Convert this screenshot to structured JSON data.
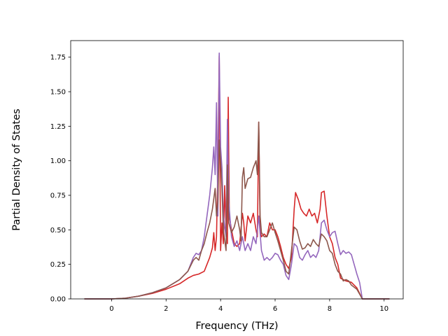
{
  "chart_data": {
    "type": "line",
    "title": "",
    "xlabel": "Frequency (THz)",
    "ylabel": "Partial Density of States",
    "xlim": [
      -1.5,
      10.7
    ],
    "ylim": [
      0,
      1.87
    ],
    "xticks": [
      0,
      2,
      4,
      6,
      8,
      10
    ],
    "xtick_labels": [
      "0",
      "2",
      "4",
      "6",
      "8",
      "10"
    ],
    "yticks": [
      0,
      0.25,
      0.5,
      0.75,
      1.0,
      1.25,
      1.5,
      1.75
    ],
    "ytick_labels": [
      "0.00",
      "0.25",
      "0.50",
      "0.75",
      "1.00",
      "1.25",
      "1.50",
      "1.75"
    ],
    "grid": false,
    "legend": "none",
    "series": [
      {
        "color": "#d62728",
        "points": [
          [
            -1.0,
            0
          ],
          [
            0,
            0
          ],
          [
            0.5,
            0.005
          ],
          [
            1.0,
            0.02
          ],
          [
            1.5,
            0.04
          ],
          [
            2.0,
            0.07
          ],
          [
            2.5,
            0.11
          ],
          [
            2.8,
            0.15
          ],
          [
            3.0,
            0.17
          ],
          [
            3.2,
            0.18
          ],
          [
            3.4,
            0.2
          ],
          [
            3.5,
            0.25
          ],
          [
            3.6,
            0.3
          ],
          [
            3.7,
            0.37
          ],
          [
            3.75,
            0.48
          ],
          [
            3.8,
            0.35
          ],
          [
            3.85,
            0.45
          ],
          [
            3.9,
            0.95
          ],
          [
            3.95,
            1.76
          ],
          [
            4.0,
            0.35
          ],
          [
            4.05,
            0.55
          ],
          [
            4.1,
            0.4
          ],
          [
            4.15,
            0.82
          ],
          [
            4.2,
            0.5
          ],
          [
            4.25,
            0.4
          ],
          [
            4.28,
            1.46
          ],
          [
            4.32,
            0.6
          ],
          [
            4.4,
            0.5
          ],
          [
            4.5,
            0.4
          ],
          [
            4.6,
            0.38
          ],
          [
            4.7,
            0.4
          ],
          [
            4.8,
            0.62
          ],
          [
            4.85,
            0.55
          ],
          [
            4.9,
            0.42
          ],
          [
            5.0,
            0.6
          ],
          [
            5.1,
            0.55
          ],
          [
            5.2,
            0.62
          ],
          [
            5.3,
            0.5
          ],
          [
            5.35,
            0.45
          ],
          [
            5.4,
            1.28
          ],
          [
            5.45,
            0.5
          ],
          [
            5.5,
            0.45
          ],
          [
            5.6,
            0.47
          ],
          [
            5.7,
            0.45
          ],
          [
            5.8,
            0.55
          ],
          [
            5.9,
            0.5
          ],
          [
            6.0,
            0.5
          ],
          [
            6.1,
            0.45
          ],
          [
            6.2,
            0.38
          ],
          [
            6.3,
            0.3
          ],
          [
            6.4,
            0.25
          ],
          [
            6.5,
            0.22
          ],
          [
            6.6,
            0.3
          ],
          [
            6.7,
            0.65
          ],
          [
            6.75,
            0.77
          ],
          [
            6.85,
            0.72
          ],
          [
            6.95,
            0.65
          ],
          [
            7.05,
            0.62
          ],
          [
            7.15,
            0.6
          ],
          [
            7.25,
            0.65
          ],
          [
            7.35,
            0.6
          ],
          [
            7.45,
            0.62
          ],
          [
            7.55,
            0.55
          ],
          [
            7.65,
            0.65
          ],
          [
            7.7,
            0.77
          ],
          [
            7.8,
            0.78
          ],
          [
            7.9,
            0.6
          ],
          [
            8.0,
            0.45
          ],
          [
            8.1,
            0.4
          ],
          [
            8.2,
            0.3
          ],
          [
            8.3,
            0.25
          ],
          [
            8.4,
            0.15
          ],
          [
            8.6,
            0.13
          ],
          [
            8.8,
            0.12
          ],
          [
            9.0,
            0.08
          ],
          [
            9.2,
            0
          ],
          [
            10.2,
            0
          ]
        ]
      },
      {
        "color": "#9467bd",
        "points": [
          [
            -1.0,
            0
          ],
          [
            0,
            0
          ],
          [
            0.5,
            0.005
          ],
          [
            1.0,
            0.02
          ],
          [
            1.5,
            0.045
          ],
          [
            2.0,
            0.08
          ],
          [
            2.5,
            0.14
          ],
          [
            2.8,
            0.2
          ],
          [
            3.0,
            0.3
          ],
          [
            3.1,
            0.33
          ],
          [
            3.2,
            0.32
          ],
          [
            3.3,
            0.35
          ],
          [
            3.4,
            0.45
          ],
          [
            3.5,
            0.6
          ],
          [
            3.6,
            0.75
          ],
          [
            3.7,
            0.95
          ],
          [
            3.75,
            1.1
          ],
          [
            3.8,
            0.9
          ],
          [
            3.85,
            1.42
          ],
          [
            3.9,
            0.6
          ],
          [
            3.95,
            1.78
          ],
          [
            4.0,
            1.1
          ],
          [
            4.05,
            0.95
          ],
          [
            4.1,
            0.6
          ],
          [
            4.2,
            0.45
          ],
          [
            4.25,
            1.3
          ],
          [
            4.3,
            0.7
          ],
          [
            4.4,
            0.45
          ],
          [
            4.5,
            0.38
          ],
          [
            4.6,
            0.42
          ],
          [
            4.7,
            0.35
          ],
          [
            4.8,
            0.45
          ],
          [
            4.9,
            0.35
          ],
          [
            5.0,
            0.4
          ],
          [
            5.1,
            0.35
          ],
          [
            5.2,
            0.45
          ],
          [
            5.3,
            0.4
          ],
          [
            5.4,
            0.6
          ],
          [
            5.5,
            0.35
          ],
          [
            5.6,
            0.28
          ],
          [
            5.7,
            0.3
          ],
          [
            5.8,
            0.28
          ],
          [
            5.9,
            0.3
          ],
          [
            6.0,
            0.33
          ],
          [
            6.1,
            0.32
          ],
          [
            6.2,
            0.28
          ],
          [
            6.3,
            0.25
          ],
          [
            6.4,
            0.17
          ],
          [
            6.5,
            0.14
          ],
          [
            6.6,
            0.25
          ],
          [
            6.7,
            0.4
          ],
          [
            6.8,
            0.38
          ],
          [
            6.9,
            0.3
          ],
          [
            7.0,
            0.28
          ],
          [
            7.1,
            0.32
          ],
          [
            7.2,
            0.35
          ],
          [
            7.3,
            0.3
          ],
          [
            7.4,
            0.32
          ],
          [
            7.5,
            0.3
          ],
          [
            7.6,
            0.35
          ],
          [
            7.7,
            0.55
          ],
          [
            7.8,
            0.57
          ],
          [
            7.9,
            0.5
          ],
          [
            8.0,
            0.45
          ],
          [
            8.1,
            0.48
          ],
          [
            8.2,
            0.49
          ],
          [
            8.3,
            0.4
          ],
          [
            8.4,
            0.32
          ],
          [
            8.5,
            0.35
          ],
          [
            8.6,
            0.33
          ],
          [
            8.7,
            0.34
          ],
          [
            8.8,
            0.32
          ],
          [
            8.9,
            0.25
          ],
          [
            9.0,
            0.18
          ],
          [
            9.1,
            0.12
          ],
          [
            9.2,
            0
          ],
          [
            10.2,
            0
          ]
        ]
      },
      {
        "color": "#8c564b",
        "points": [
          [
            -1.0,
            0
          ],
          [
            0,
            0
          ],
          [
            0.5,
            0.005
          ],
          [
            1.0,
            0.02
          ],
          [
            1.5,
            0.045
          ],
          [
            2.0,
            0.08
          ],
          [
            2.5,
            0.14
          ],
          [
            2.8,
            0.2
          ],
          [
            3.0,
            0.28
          ],
          [
            3.1,
            0.3
          ],
          [
            3.2,
            0.28
          ],
          [
            3.3,
            0.35
          ],
          [
            3.4,
            0.4
          ],
          [
            3.5,
            0.48
          ],
          [
            3.6,
            0.55
          ],
          [
            3.7,
            0.65
          ],
          [
            3.8,
            0.8
          ],
          [
            3.85,
            0.6
          ],
          [
            3.9,
            0.7
          ],
          [
            3.95,
            1.15
          ],
          [
            4.0,
            1.0
          ],
          [
            4.05,
            0.8
          ],
          [
            4.1,
            0.5
          ],
          [
            4.2,
            0.35
          ],
          [
            4.25,
            0.97
          ],
          [
            4.3,
            0.55
          ],
          [
            4.4,
            0.48
          ],
          [
            4.5,
            0.52
          ],
          [
            4.6,
            0.6
          ],
          [
            4.7,
            0.5
          ],
          [
            4.75,
            0.42
          ],
          [
            4.8,
            0.88
          ],
          [
            4.85,
            0.95
          ],
          [
            4.9,
            0.8
          ],
          [
            5.0,
            0.87
          ],
          [
            5.1,
            0.88
          ],
          [
            5.2,
            0.95
          ],
          [
            5.3,
            1.0
          ],
          [
            5.35,
            0.9
          ],
          [
            5.4,
            1.28
          ],
          [
            5.45,
            0.6
          ],
          [
            5.5,
            0.48
          ],
          [
            5.6,
            0.45
          ],
          [
            5.7,
            0.45
          ],
          [
            5.8,
            0.5
          ],
          [
            5.9,
            0.55
          ],
          [
            6.0,
            0.48
          ],
          [
            6.1,
            0.42
          ],
          [
            6.2,
            0.35
          ],
          [
            6.3,
            0.28
          ],
          [
            6.4,
            0.2
          ],
          [
            6.5,
            0.18
          ],
          [
            6.6,
            0.35
          ],
          [
            6.7,
            0.52
          ],
          [
            6.8,
            0.5
          ],
          [
            6.9,
            0.42
          ],
          [
            7.0,
            0.36
          ],
          [
            7.1,
            0.37
          ],
          [
            7.2,
            0.4
          ],
          [
            7.3,
            0.38
          ],
          [
            7.4,
            0.43
          ],
          [
            7.5,
            0.4
          ],
          [
            7.6,
            0.38
          ],
          [
            7.7,
            0.47
          ],
          [
            7.8,
            0.45
          ],
          [
            7.9,
            0.42
          ],
          [
            8.0,
            0.35
          ],
          [
            8.1,
            0.33
          ],
          [
            8.2,
            0.25
          ],
          [
            8.3,
            0.2
          ],
          [
            8.4,
            0.18
          ],
          [
            8.5,
            0.13
          ],
          [
            8.6,
            0.14
          ],
          [
            8.7,
            0.13
          ],
          [
            8.8,
            0.1
          ],
          [
            9.0,
            0.07
          ],
          [
            9.2,
            0
          ],
          [
            10.2,
            0
          ]
        ]
      }
    ]
  }
}
